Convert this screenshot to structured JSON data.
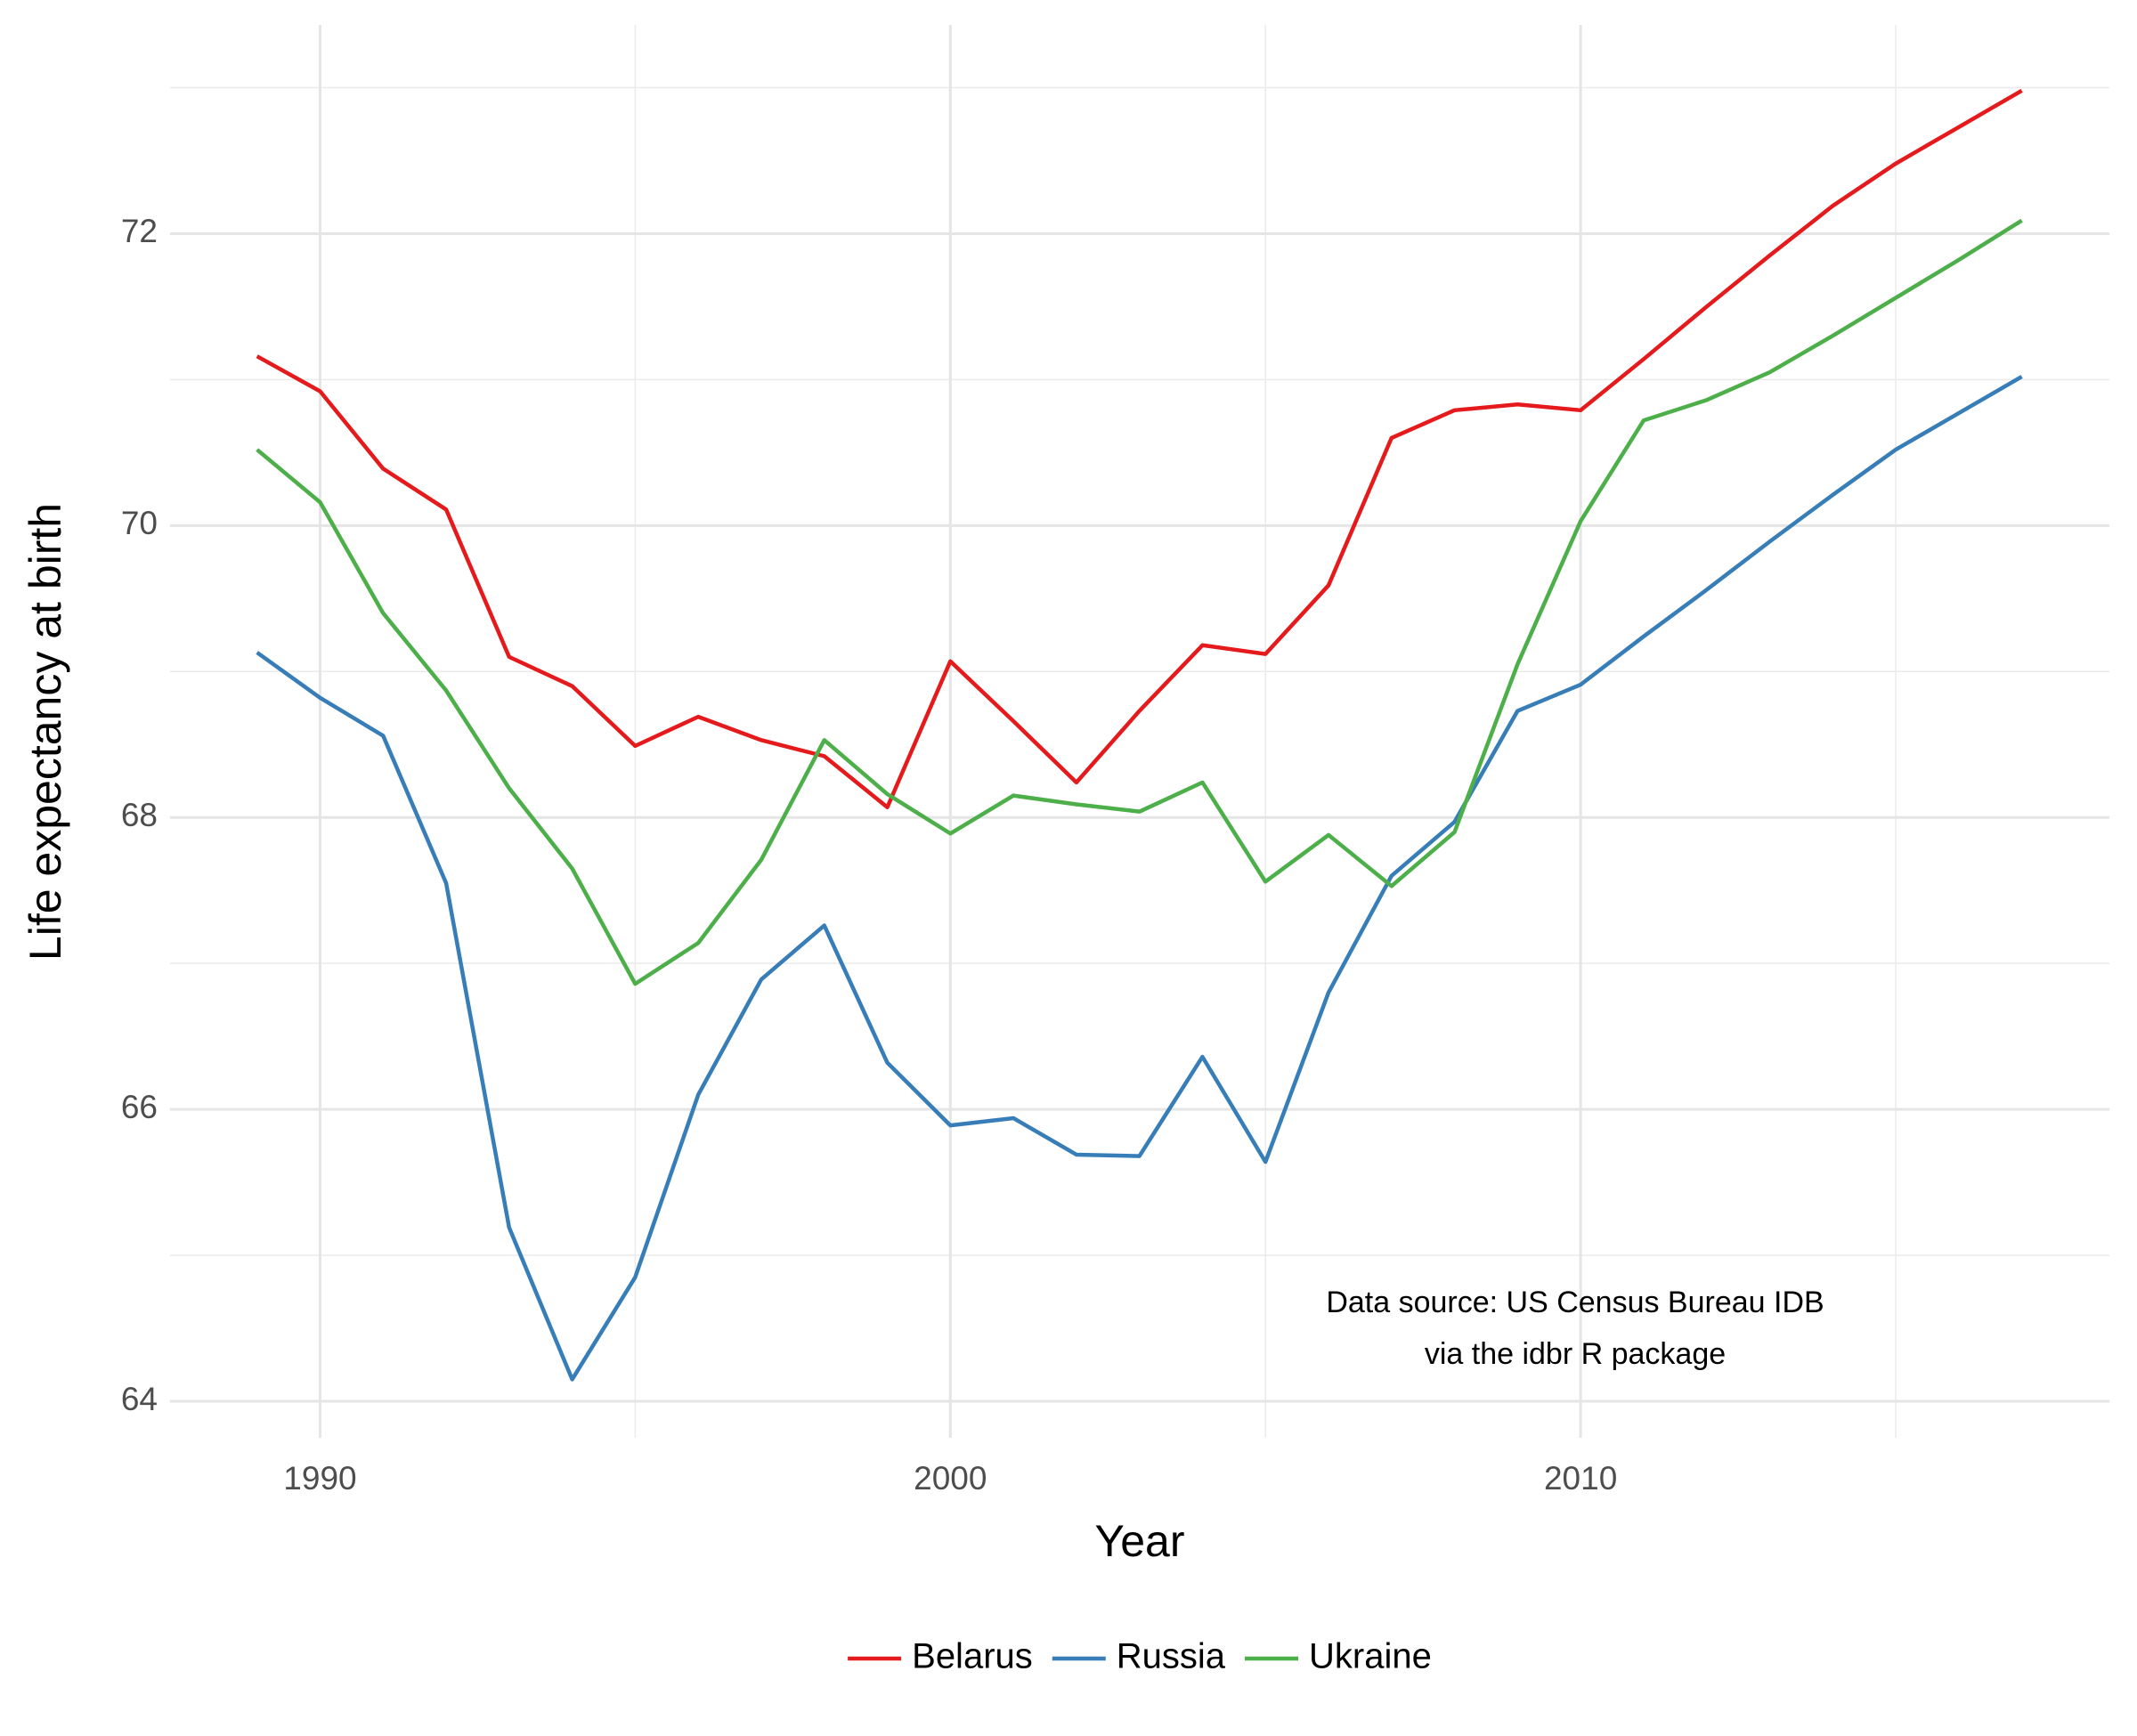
{
  "chart_data": {
    "type": "line",
    "x_label": "Year",
    "y_label": "Life expectancy at birth",
    "annotation": [
      "Data source: US Census Bureau IDB",
      "via the idbr R package"
    ],
    "x": [
      1989,
      1990,
      1991,
      1992,
      1993,
      1994,
      1995,
      1996,
      1997,
      1998,
      1999,
      2000,
      2001,
      2002,
      2003,
      2004,
      2005,
      2006,
      2007,
      2008,
      2009,
      2010,
      2011,
      2012,
      2013,
      2014,
      2015,
      2016,
      2017
    ],
    "series": [
      {
        "name": "Belarus",
        "color": "#e41a1c",
        "values": [
          71.16,
          70.92,
          70.39,
          70.11,
          69.1,
          68.9,
          68.49,
          68.69,
          68.53,
          68.42,
          68.07,
          69.07,
          68.66,
          68.24,
          68.73,
          69.18,
          69.12,
          69.59,
          70.6,
          70.79,
          70.83,
          70.79,
          71.14,
          71.5,
          71.85,
          72.19,
          72.48,
          72.73,
          72.98
        ]
      },
      {
        "name": "Russia",
        "color": "#377eb8",
        "values": [
          69.13,
          68.82,
          68.56,
          67.55,
          65.19,
          64.15,
          64.85,
          66.1,
          66.89,
          67.26,
          66.32,
          65.89,
          65.94,
          65.69,
          65.68,
          66.36,
          65.64,
          66.8,
          67.6,
          67.97,
          68.73,
          68.91,
          69.24,
          69.56,
          69.89,
          70.21,
          70.52,
          70.77,
          71.02
        ]
      },
      {
        "name": "Ukraine",
        "color": "#4daf4a",
        "values": [
          70.52,
          70.16,
          69.4,
          68.87,
          68.2,
          67.65,
          66.86,
          67.14,
          67.71,
          68.53,
          68.16,
          67.89,
          68.15,
          68.09,
          68.04,
          68.24,
          67.56,
          67.88,
          67.53,
          67.9,
          69.05,
          70.03,
          70.72,
          70.86,
          71.05,
          71.3,
          71.56,
          71.82,
          72.09
        ]
      }
    ],
    "xlim": [
      1987.62,
      2018.39
    ],
    "ylim": [
      63.75,
      73.43
    ],
    "xticks": [
      1990,
      2000,
      2010
    ],
    "yticks": [
      64,
      66,
      68,
      70,
      72
    ],
    "x_minor_grid": [
      1995,
      2005,
      2015
    ],
    "y_minor_grid": [
      65,
      67,
      69,
      71,
      73
    ],
    "grid": true,
    "legend": "bottom"
  }
}
